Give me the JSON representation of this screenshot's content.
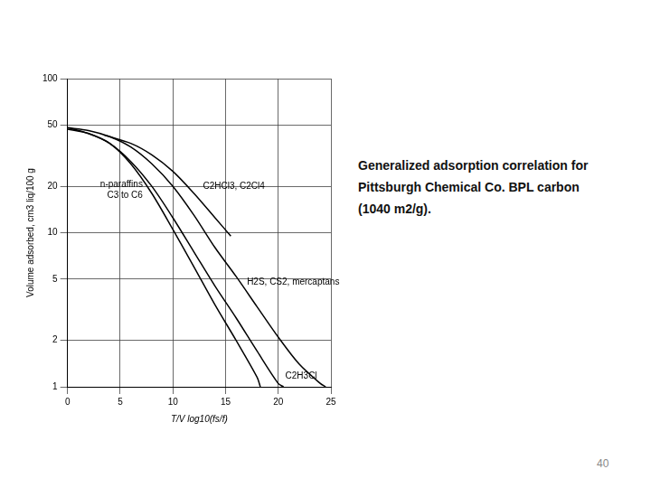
{
  "chart_data": {
    "type": "line",
    "x_label": "T/V log10(fs/f)",
    "y_label": "Volume adsorbed, cm3 liq/100 g",
    "log": "y",
    "grid": true,
    "xlim": [
      0,
      25
    ],
    "xticks": [
      0,
      5,
      10,
      15,
      20,
      25
    ],
    "ylim": [
      1,
      100
    ],
    "yticks": [
      1,
      2,
      5,
      10,
      20,
      50,
      100
    ],
    "series": [
      {
        "name": "n-paraffins C3 to C6",
        "color": "#000000",
        "x": [
          0,
          2,
          4,
          6,
          8,
          10,
          12,
          14,
          16,
          18,
          18.3
        ],
        "values": [
          48,
          44,
          38,
          28,
          18,
          10.5,
          6,
          3.4,
          2,
          1.15,
          1
        ]
      },
      {
        "name": "C2HCl3, C2Cl4",
        "color": "#000000",
        "x": [
          3.5,
          6,
          8,
          10,
          12,
          14,
          15.5
        ],
        "values": [
          43,
          38,
          32,
          25,
          18,
          12.5,
          9.5
        ]
      },
      {
        "name": "H2S, CS2, mercaptans",
        "color": "#000000",
        "x": [
          0,
          2,
          4,
          6,
          8,
          10,
          12,
          14,
          16,
          18,
          20,
          22,
          24,
          24.5
        ],
        "values": [
          48,
          46,
          42,
          36,
          28,
          20,
          13,
          8,
          5.2,
          3.3,
          2.1,
          1.4,
          1.05,
          1
        ]
      },
      {
        "name": "C2H3Cl",
        "color": "#000000",
        "x": [
          0,
          2,
          4,
          6,
          8,
          10,
          12,
          14,
          16,
          18,
          20,
          20.5
        ],
        "values": [
          47,
          44,
          38,
          29,
          20,
          12.5,
          7.5,
          4.5,
          2.8,
          1.7,
          1.05,
          1
        ]
      }
    ]
  },
  "caption": "Generalized adsorption correlation for Pittsburgh Chemical Co. BPL carbon (1040 m2/g).",
  "page_number": 40
}
